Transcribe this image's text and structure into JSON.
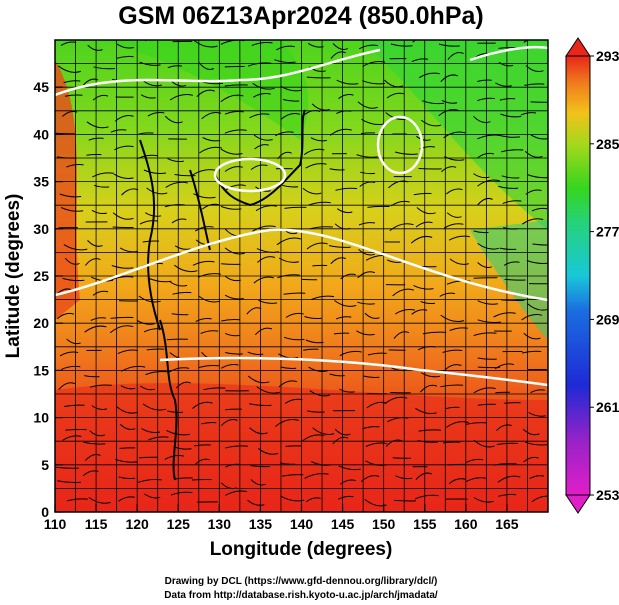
{
  "title": "GSM 06Z13Apr2024 (850.0hPa)",
  "x_label": "Longitude (degrees)",
  "y_label": "Latitude  (degrees)",
  "x_ticks": [
    "110",
    "115",
    "120",
    "125",
    "130",
    "135",
    "140",
    "145",
    "150",
    "155",
    "160",
    "165"
  ],
  "y_ticks": [
    "0",
    "5",
    "10",
    "15",
    "20",
    "25",
    "30",
    "35",
    "40",
    "45"
  ],
  "colorbar_ticks": [
    "293",
    "285",
    "277",
    "269",
    "261",
    "253"
  ],
  "credit_drawing": "Drawing by DCL (https://www.gfd-dennou.org/library/dcl/)",
  "credit_data": "Data from http://database.rish.kyoto-u.ac.jp/arch/jmadata/",
  "colors": {
    "hot": "#e8261a",
    "warm": "#f07a1c",
    "mild": "#f2c21a",
    "cool": "#36d61e",
    "cyan": "#19c8d8",
    "blue": "#1e3cd6",
    "magenta": "#e21ec8"
  },
  "chart_data": {
    "type": "heatmap",
    "title": "GSM 06Z13Apr2024 (850.0hPa)",
    "xlabel": "Longitude (degrees)",
    "ylabel": "Latitude  (degrees)",
    "xlim": [
      110,
      170
    ],
    "ylim": [
      0,
      50
    ],
    "x_ticks": [
      110,
      115,
      120,
      125,
      130,
      135,
      140,
      145,
      150,
      155,
      160,
      165
    ],
    "y_ticks": [
      0,
      5,
      10,
      15,
      20,
      25,
      30,
      35,
      40,
      45
    ],
    "colorbar": {
      "min": 253,
      "max": 293,
      "ticks": [
        293,
        285,
        277,
        269,
        261,
        253
      ]
    },
    "grid": true,
    "overlays": [
      "streamlines",
      "coastlines",
      "white contours"
    ]
  }
}
